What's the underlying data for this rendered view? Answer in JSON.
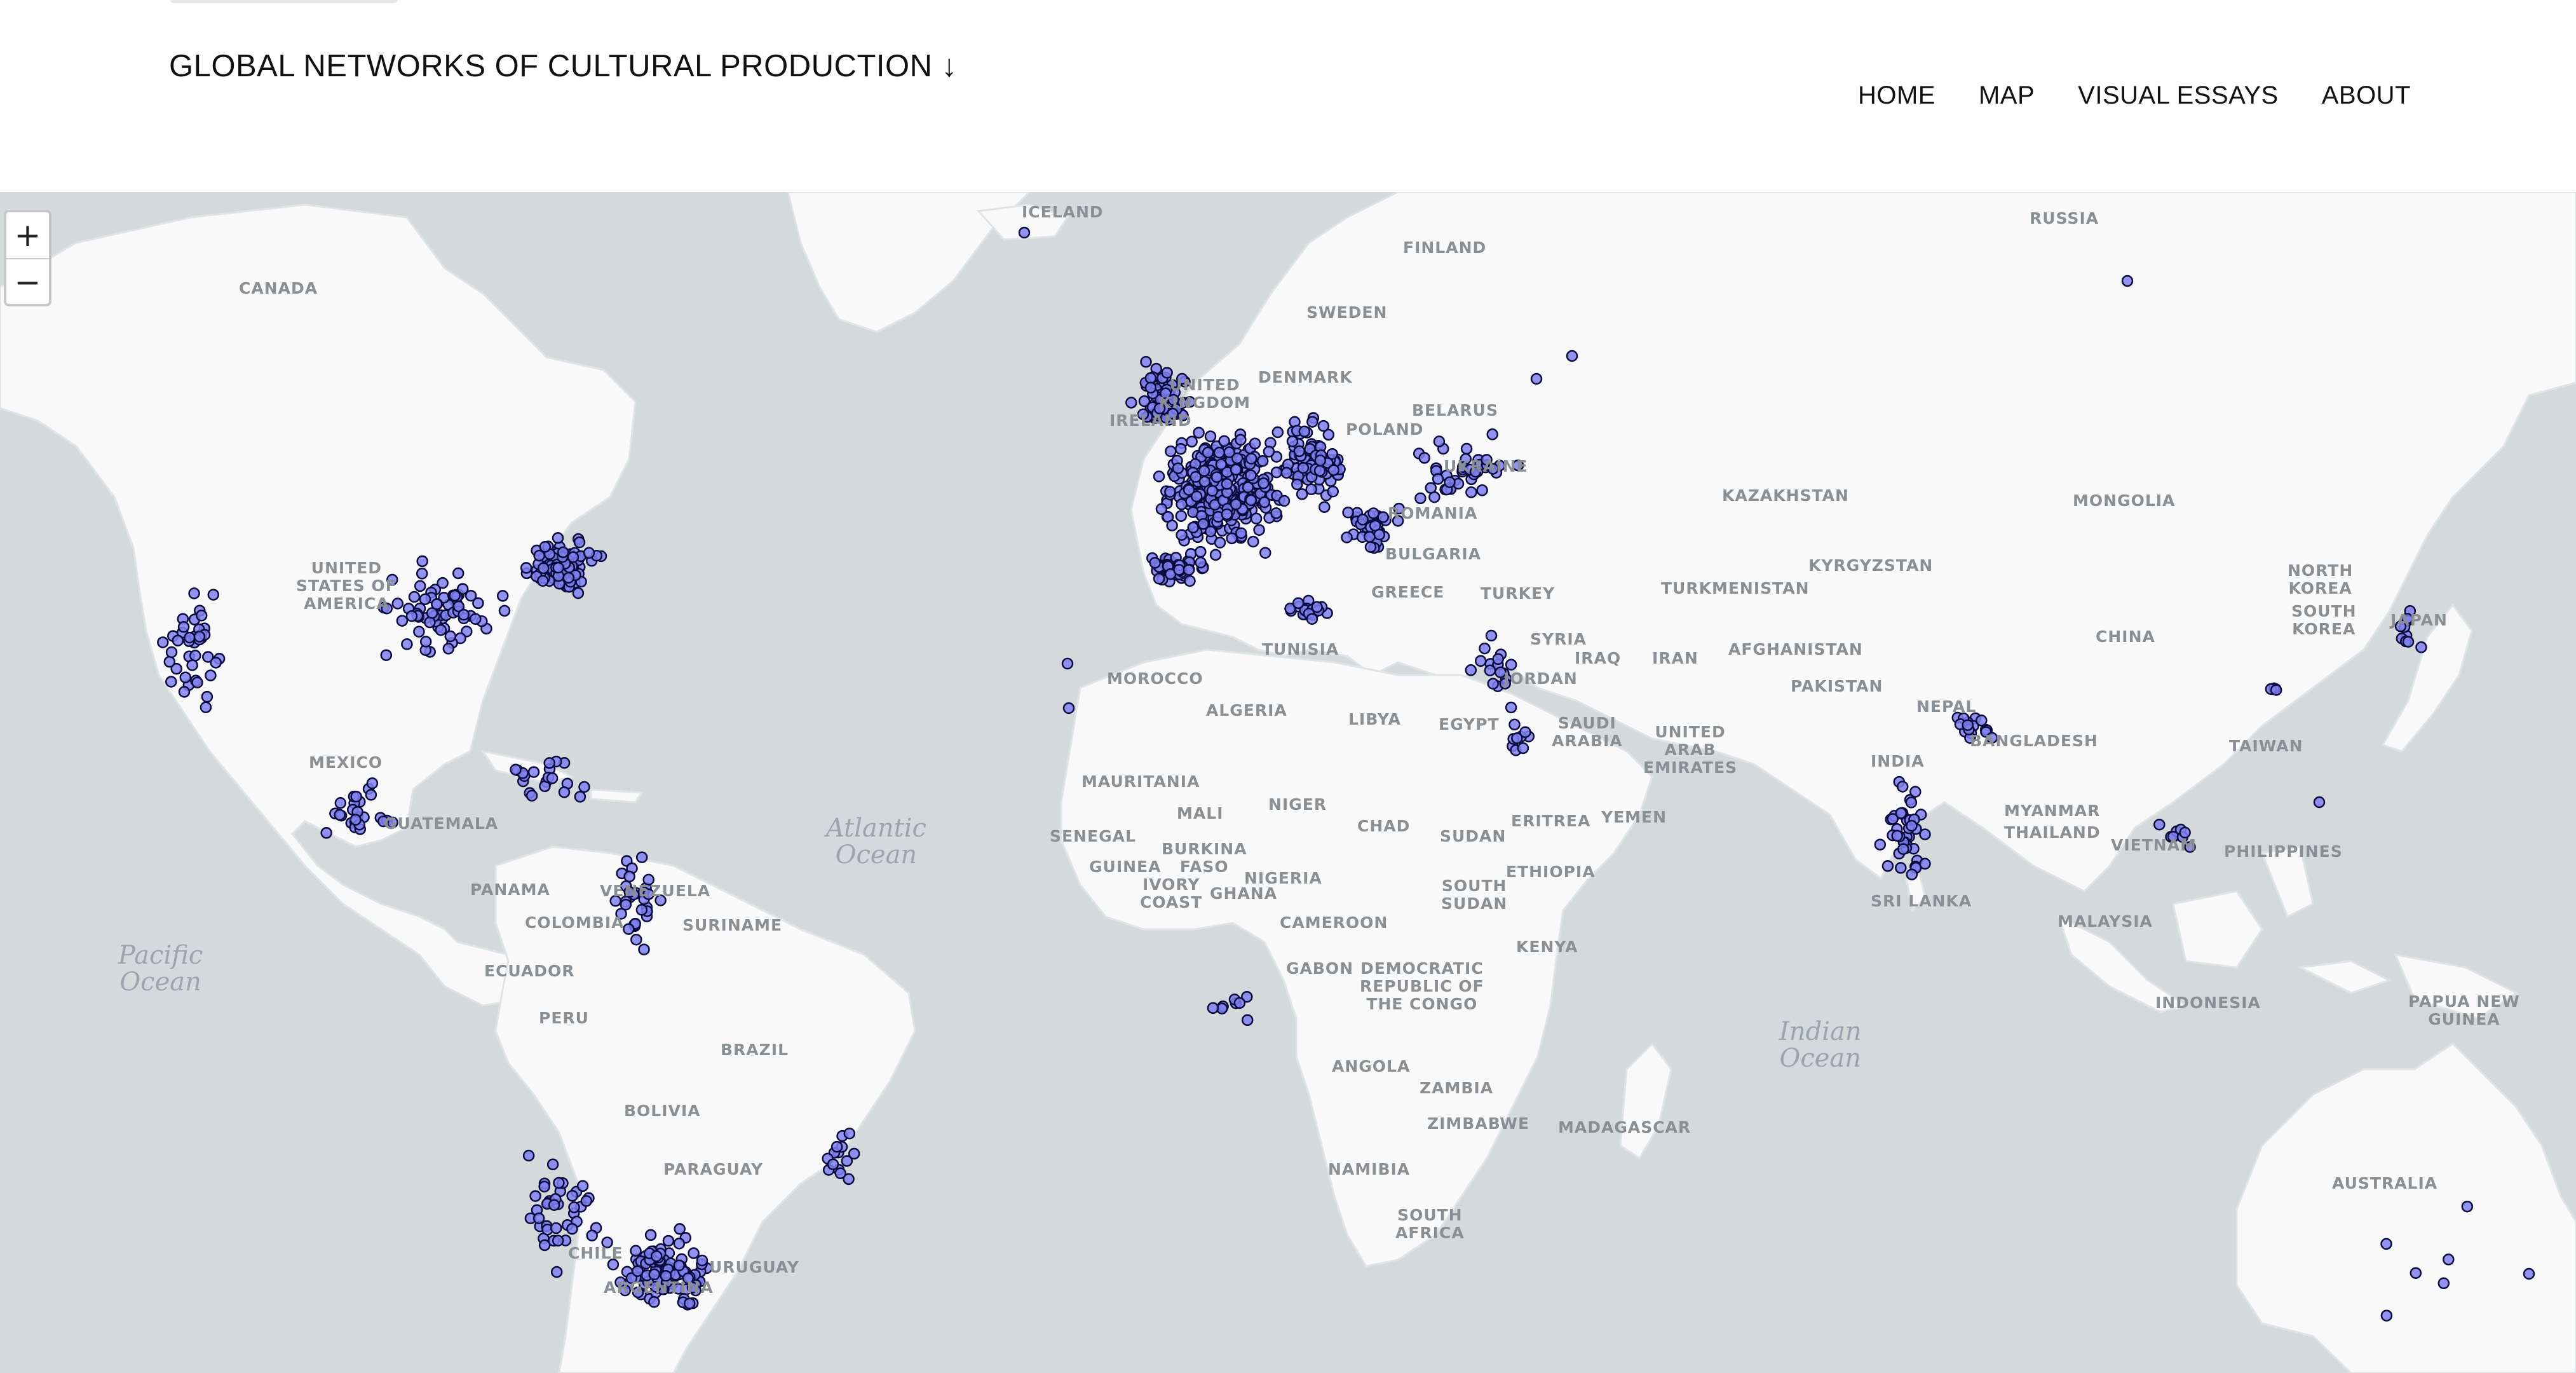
{
  "header": {
    "title": "GLOBAL NETWORKS OF CULTURAL PRODUCTION ↓",
    "nav": [
      "HOME",
      "MAP",
      "VISUAL ESSAYS",
      "ABOUT"
    ]
  },
  "map": {
    "zoom_in": "+",
    "zoom_out": "−",
    "colors": {
      "water": "#d4dadc",
      "land": "#f9f9f9",
      "marker_fill": "#8080f0",
      "marker_stroke": "#0a0a3c"
    },
    "oceans": [
      "Pacific\nOcean",
      "Atlantic\nOcean",
      "Indian\nOcean"
    ],
    "countries": [
      "ICELAND",
      "RUSSIA",
      "FINLAND",
      "SWEDEN",
      "CANADA",
      "DENMARK",
      "UNITED\nKINGDOM",
      "IRELAND",
      "POLAND",
      "BELARUS",
      "UKRAINE",
      "KAZAKHSTAN",
      "MONGOLIA",
      "ROMANIA",
      "BULGARIA",
      "UNITED\nSTATES OF\nAMERICA",
      "TURKEY",
      "TURKMENISTAN",
      "KYRGYZSTAN",
      "NORTH\nKOREA",
      "SOUTH\nKOREA",
      "JAPAN",
      "GREECE",
      "SYRIA",
      "IRAQ",
      "IRAN",
      "AFGHANISTAN",
      "PAKISTAN",
      "CHINA",
      "MOROCCO",
      "TUNISIA",
      "JORDAN",
      "ALGERIA",
      "LIBYA",
      "EGYPT",
      "SAUDI\nARABIA",
      "UNITED\nARAB\nEMIRATES",
      "NEPAL",
      "BANGLADESH",
      "TAIWAN",
      "MEXICO",
      "INDIA",
      "MAURITANIA",
      "MALI",
      "NIGER",
      "CHAD",
      "SUDAN",
      "ERITREA",
      "YEMEN",
      "MYANMAR",
      "THAILAND",
      "VIETNAM",
      "PHILIPPINES",
      "GUATEMALA",
      "SENEGAL",
      "GUINEA",
      "BURKINA\nFASO",
      "IVORY\nCOAST",
      "GHANA",
      "NIGERIA",
      "SOUTH\nSUDAN",
      "ETHIOPIA",
      "SRI LANKA",
      "PANAMA",
      "VENEZUELA",
      "COLOMBIA",
      "SURINAME",
      "CAMEROON",
      "GABON",
      "DEMOCRATIC\nREPUBLIC OF\nTHE CONGO",
      "KENYA",
      "MALAYSIA",
      "ECUADOR",
      "PERU",
      "BRAZIL",
      "INDONESIA",
      "PAPUA NEW\nGUINEA",
      "ANGOLA",
      "ZAMBIA",
      "ZIMBABWE",
      "MADAGASCAR",
      "BOLIVIA",
      "NAMIBIA",
      "PARAGUAY",
      "SOUTH\nAFRICA",
      "AUSTRALIA",
      "CHILE",
      "ARGENTINA",
      "URUGUAY"
    ]
  }
}
